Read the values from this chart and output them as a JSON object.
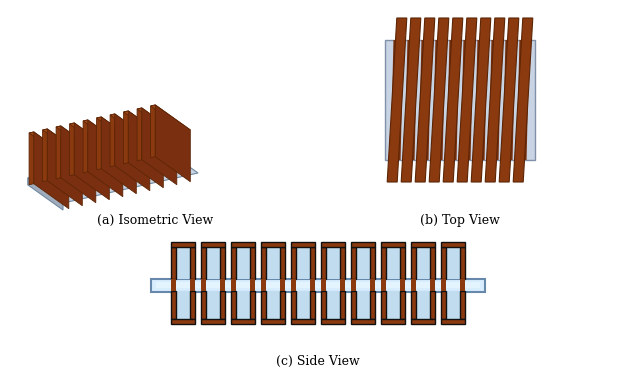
{
  "background": "#ffffff",
  "label_a": "(a) Isometric View",
  "label_b": "(b) Top View",
  "label_c": "(c) Side View",
  "copper_color": "#8B3A0F",
  "copper_mid": "#7A3010",
  "copper_dark": "#5C2506",
  "copper_light": "#A04818",
  "core_color": "#B8C4D4",
  "core_dark": "#9098B0",
  "core_light": "#C8D4E4",
  "core_side": "#A0ACBC",
  "light_blue": "#C0DCEE",
  "light_blue2": "#D8EEFF",
  "light_blue_bright": "#E8F6FF",
  "dark_outline": "#111111",
  "n_windings": 10,
  "label_fontsize": 9
}
